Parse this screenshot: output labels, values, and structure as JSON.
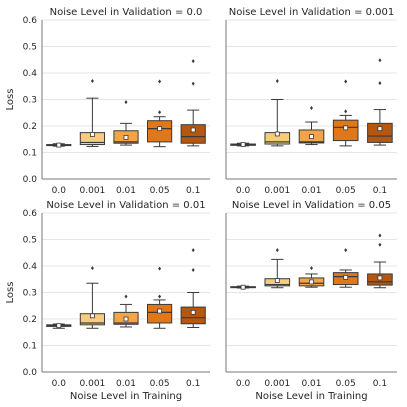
{
  "chart_data": [
    {
      "type": "box",
      "title": "Noise Level in Validation = 0.0",
      "ylabel": "Loss",
      "xlabel": "",
      "ylim": [
        0,
        0.6
      ],
      "yticks": [
        "0.0",
        "0.1",
        "0.2",
        "0.3",
        "0.4",
        "0.5",
        "0.6"
      ],
      "categories": [
        "0.0",
        "0.001",
        "0.01",
        "0.05",
        "0.1"
      ],
      "boxes": [
        {
          "category": "0.0",
          "whisker_low": 0.124,
          "q1": 0.126,
          "median": 0.128,
          "q3": 0.13,
          "whisker_high": 0.133,
          "mean": 0.128,
          "outliers": []
        },
        {
          "category": "0.001",
          "whisker_low": 0.123,
          "q1": 0.13,
          "median": 0.138,
          "q3": 0.175,
          "whisker_high": 0.305,
          "mean": 0.168,
          "outliers": [
            0.37
          ]
        },
        {
          "category": "0.01",
          "whisker_low": 0.128,
          "q1": 0.135,
          "median": 0.14,
          "q3": 0.182,
          "whisker_high": 0.21,
          "mean": 0.157,
          "outliers": [
            0.29
          ]
        },
        {
          "category": "0.05",
          "whisker_low": 0.122,
          "q1": 0.14,
          "median": 0.19,
          "q3": 0.22,
          "whisker_high": 0.235,
          "mean": 0.19,
          "outliers": [
            0.252,
            0.368
          ]
        },
        {
          "category": "0.1",
          "whisker_low": 0.125,
          "q1": 0.135,
          "median": 0.16,
          "q3": 0.205,
          "whisker_high": 0.26,
          "mean": 0.185,
          "outliers": [
            0.36,
            0.445
          ]
        }
      ]
    },
    {
      "type": "box",
      "title": "Noise Level in Validation = 0.001",
      "ylabel": "",
      "xlabel": "",
      "ylim": [
        0,
        0.6
      ],
      "yticks": [],
      "categories": [
        "0.0",
        "0.001",
        "0.01",
        "0.05",
        "0.1"
      ],
      "boxes": [
        {
          "category": "0.0",
          "whisker_low": 0.125,
          "q1": 0.127,
          "median": 0.13,
          "q3": 0.132,
          "whisker_high": 0.135,
          "mean": 0.13,
          "outliers": []
        },
        {
          "category": "0.001",
          "whisker_low": 0.125,
          "q1": 0.132,
          "median": 0.14,
          "q3": 0.175,
          "whisker_high": 0.3,
          "mean": 0.17,
          "outliers": [
            0.37
          ]
        },
        {
          "category": "0.01",
          "whisker_low": 0.13,
          "q1": 0.136,
          "median": 0.14,
          "q3": 0.185,
          "whisker_high": 0.215,
          "mean": 0.16,
          "outliers": [
            0.268
          ]
        },
        {
          "category": "0.05",
          "whisker_low": 0.125,
          "q1": 0.145,
          "median": 0.195,
          "q3": 0.222,
          "whisker_high": 0.24,
          "mean": 0.193,
          "outliers": [
            0.255,
            0.368
          ]
        },
        {
          "category": "0.1",
          "whisker_low": 0.128,
          "q1": 0.138,
          "median": 0.162,
          "q3": 0.21,
          "whisker_high": 0.262,
          "mean": 0.19,
          "outliers": [
            0.362,
            0.448
          ]
        }
      ]
    },
    {
      "type": "box",
      "title": "Noise Level in Validation = 0.01",
      "ylabel": "Loss",
      "xlabel": "Noise Level in Training",
      "ylim": [
        0,
        0.6
      ],
      "yticks": [
        "0.0",
        "0.1",
        "0.2",
        "0.3",
        "0.4",
        "0.5",
        "0.6"
      ],
      "categories": [
        "0.0",
        "0.001",
        "0.01",
        "0.05",
        "0.1"
      ],
      "boxes": [
        {
          "category": "0.0",
          "whisker_low": 0.165,
          "q1": 0.172,
          "median": 0.176,
          "q3": 0.178,
          "whisker_high": 0.181,
          "mean": 0.175,
          "outliers": []
        },
        {
          "category": "0.001",
          "whisker_low": 0.165,
          "q1": 0.178,
          "median": 0.185,
          "q3": 0.22,
          "whisker_high": 0.335,
          "mean": 0.212,
          "outliers": [
            0.392
          ]
        },
        {
          "category": "0.01",
          "whisker_low": 0.17,
          "q1": 0.18,
          "median": 0.185,
          "q3": 0.225,
          "whisker_high": 0.255,
          "mean": 0.2,
          "outliers": [
            0.285
          ]
        },
        {
          "category": "0.05",
          "whisker_low": 0.165,
          "q1": 0.185,
          "median": 0.225,
          "q3": 0.255,
          "whisker_high": 0.272,
          "mean": 0.23,
          "outliers": [
            0.285,
            0.39
          ]
        },
        {
          "category": "0.1",
          "whisker_low": 0.168,
          "q1": 0.182,
          "median": 0.205,
          "q3": 0.245,
          "whisker_high": 0.3,
          "mean": 0.225,
          "outliers": [
            0.385,
            0.46
          ]
        }
      ]
    },
    {
      "type": "box",
      "title": "Noise Level in Validation = 0.05",
      "ylabel": "",
      "xlabel": "Noise Level in Training",
      "ylim": [
        0,
        0.6
      ],
      "yticks": [],
      "categories": [
        "0.0",
        "0.001",
        "0.01",
        "0.05",
        "0.1"
      ],
      "boxes": [
        {
          "category": "0.0",
          "whisker_low": 0.317,
          "q1": 0.319,
          "median": 0.32,
          "q3": 0.322,
          "whisker_high": 0.324,
          "mean": 0.32,
          "outliers": []
        },
        {
          "category": "0.001",
          "whisker_low": 0.318,
          "q1": 0.325,
          "median": 0.33,
          "q3": 0.352,
          "whisker_high": 0.425,
          "mean": 0.345,
          "outliers": [
            0.46
          ]
        },
        {
          "category": "0.01",
          "whisker_low": 0.32,
          "q1": 0.325,
          "median": 0.335,
          "q3": 0.355,
          "whisker_high": 0.37,
          "mean": 0.34,
          "outliers": [
            0.392
          ]
        },
        {
          "category": "0.05",
          "whisker_low": 0.32,
          "q1": 0.33,
          "median": 0.36,
          "q3": 0.375,
          "whisker_high": 0.385,
          "mean": 0.357,
          "outliers": [
            0.46
          ]
        },
        {
          "category": "0.1",
          "whisker_low": 0.318,
          "q1": 0.328,
          "median": 0.34,
          "q3": 0.37,
          "whisker_high": 0.415,
          "mean": 0.355,
          "outliers": [
            0.48,
            0.515
          ]
        }
      ]
    }
  ],
  "colors": {
    "boxes": [
      "#f2f2f2",
      "#f7cd79",
      "#f3a447",
      "#e0781a",
      "#b6570f"
    ],
    "grid": "#dddddd",
    "text": "#262626"
  }
}
